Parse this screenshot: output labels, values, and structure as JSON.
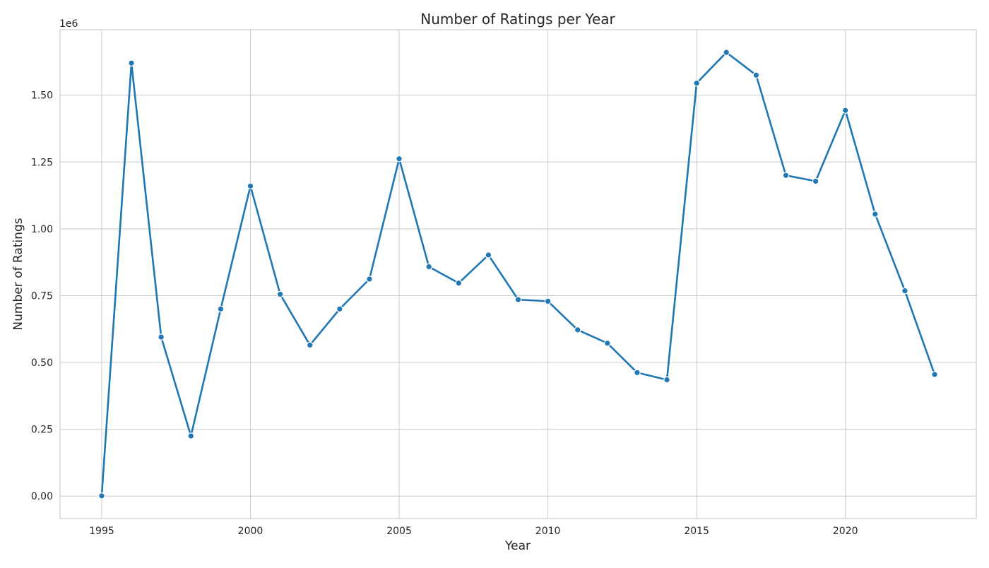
{
  "chart_data": {
    "type": "line",
    "title": "Number of Ratings per Year",
    "xlabel": "Year",
    "ylabel": "Number of Ratings",
    "y_offset_label": "1e6",
    "x": [
      1995,
      1996,
      1997,
      1998,
      1999,
      2000,
      2001,
      2002,
      2003,
      2004,
      2005,
      2006,
      2007,
      2008,
      2009,
      2010,
      2011,
      2012,
      2013,
      2014,
      2015,
      2016,
      2017,
      2018,
      2019,
      2020,
      2021,
      2022,
      2023
    ],
    "series": [
      {
        "values": [
          1000,
          1620000,
          595000,
          225000,
          700000,
          1160000,
          755000,
          565000,
          700000,
          812000,
          1262000,
          858000,
          797000,
          902000,
          735000,
          729000,
          622000,
          572000,
          462000,
          435000,
          1545000,
          1660000,
          1575000,
          1200000,
          1178000,
          1443000,
          1055000,
          768000,
          455000
        ],
        "color": "#1f77b4"
      }
    ],
    "xlim": [
      1993.6,
      2024.4
    ],
    "ylim": [
      -84000,
      1745000
    ],
    "x_ticks": [
      1995,
      2000,
      2005,
      2010,
      2015,
      2020
    ],
    "x_tick_labels": [
      "1995",
      "2000",
      "2005",
      "2010",
      "2015",
      "2020"
    ],
    "y_ticks": [
      0,
      250000,
      500000,
      750000,
      1000000,
      1250000,
      1500000
    ],
    "y_tick_labels": [
      "0.00",
      "0.25",
      "0.50",
      "0.75",
      "1.00",
      "1.25",
      "1.50"
    ],
    "grid": true,
    "legend": "none",
    "marker": "circle"
  }
}
